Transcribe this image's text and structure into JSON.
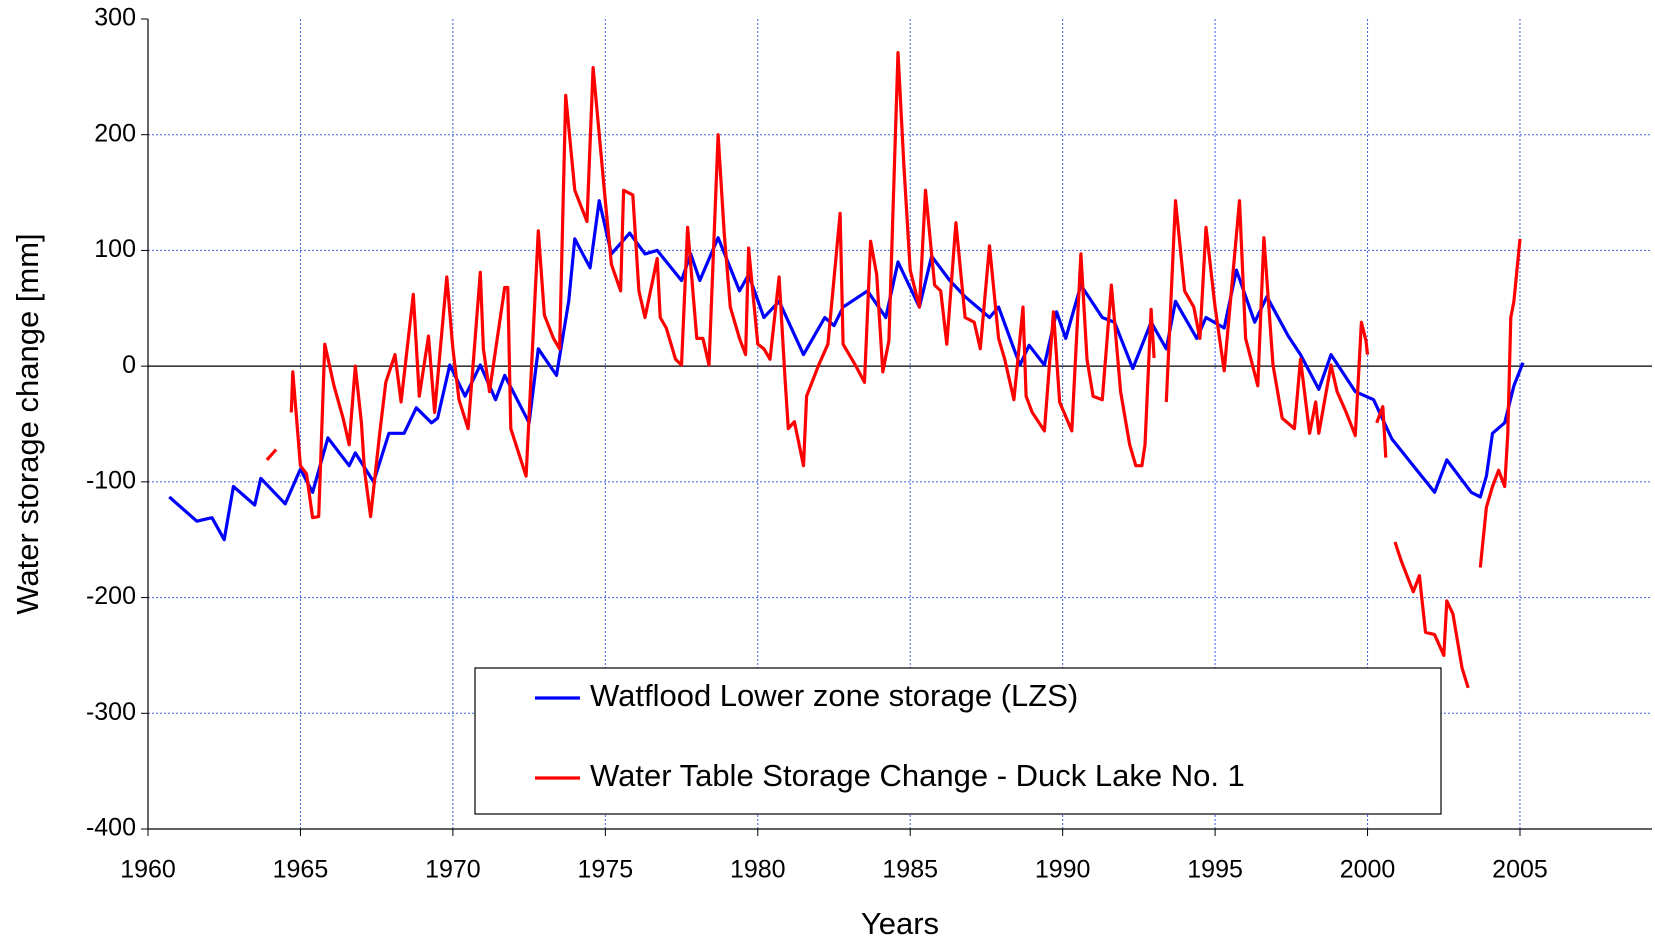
{
  "chart_data": {
    "type": "line",
    "x_label": "Years",
    "y_label": "Water storage change [mm]",
    "xlim": [
      1960,
      2009.33
    ],
    "xticks": [
      1960,
      1965,
      1970,
      1975,
      1980,
      1985,
      1990,
      1995,
      2000,
      2005
    ],
    "ylim": [
      -400,
      300
    ],
    "yticks": [
      -400,
      -300,
      -200,
      -100,
      0,
      100,
      200,
      300
    ],
    "grid": true,
    "legend": "bottom",
    "series": [
      {
        "name": "Watflood Lower zone storage (LZS)",
        "color": "#0000ff",
        "x": [
          1960.7,
          1961.6,
          1962.1,
          1962.5,
          1962.8,
          1963.5,
          1963.7,
          1964.5,
          1965.0,
          1965.4,
          1965.9,
          1966.6,
          1966.8,
          1967.4,
          1967.9,
          1968.4,
          1968.8,
          1969.3,
          1969.5,
          1969.9,
          1970.4,
          1970.9,
          1971.4,
          1971.7,
          1972.5,
          1972.8,
          1973.4,
          1973.8,
          1974.0,
          1974.5,
          1974.8,
          1975.2,
          1975.8,
          1976.3,
          1976.7,
          1977.5,
          1977.8,
          1978.1,
          1978.7,
          1979.4,
          1979.7,
          1980.2,
          1980.7,
          1981.5,
          1982.2,
          1982.5,
          1982.8,
          1983.6,
          1984.2,
          1984.6,
          1985.3,
          1985.7,
          1986.3,
          1986.8,
          1987.6,
          1987.9,
          1988.4,
          1988.6,
          1988.9,
          1989.4,
          1989.8,
          1990.1,
          1990.6,
          1991.3,
          1991.7,
          1992.3,
          1992.9,
          1993.4,
          1993.7,
          1994.4,
          1994.7,
          1995.3,
          1995.7,
          1996.3,
          1996.7,
          1997.4,
          1997.8,
          1998.4,
          1998.8,
          1999.6,
          2000.2,
          2000.8,
          2001.5,
          2002.2,
          2002.6,
          2003.4,
          2003.7,
          2003.9,
          2004.1,
          2004.5,
          2004.8,
          2005.1
        ],
        "values": [
          -113,
          -134,
          -131,
          -150,
          -104,
          -120,
          -97,
          -119,
          -89,
          -109,
          -62,
          -86,
          -75,
          -100,
          -58,
          -58,
          -36,
          -49,
          -45,
          1,
          -26,
          1,
          -29,
          -8,
          -49,
          15,
          -8,
          56,
          110,
          85,
          143,
          97,
          115,
          97,
          100,
          74,
          97,
          74,
          111,
          65,
          79,
          42,
          56,
          10,
          42,
          35,
          51,
          65,
          42,
          90,
          51,
          95,
          74,
          60,
          42,
          51,
          15,
          1,
          18,
          1,
          47,
          24,
          70,
          42,
          38,
          -2,
          38,
          15,
          56,
          24,
          42,
          33,
          83,
          38,
          60,
          26,
          10,
          -20,
          10,
          -22,
          -29,
          -63,
          -86,
          -109,
          -81,
          -109,
          -113,
          -95,
          -58,
          -49,
          -17,
          3
        ]
      },
      {
        "name": "Water Table Storage Change - Duck Lake No. 1",
        "color": "#ff0000",
        "x": [
          1963.9,
          1964.2,
          null,
          1964.7,
          1964.75,
          1965.0,
          1965.2,
          1965.4,
          1965.6,
          1965.8,
          1966.1,
          1966.4,
          1966.6,
          1966.8,
          1967.0,
          1967.1,
          1967.3,
          1967.6,
          1967.8,
          1968.1,
          1968.3,
          1968.7,
          1968.9,
          1969.2,
          1969.4,
          1969.8,
          1970.0,
          1970.2,
          1970.5,
          1970.9,
          1971.0,
          1971.2,
          1971.7,
          1971.8,
          1971.9,
          1972.4,
          1972.8,
          1973.0,
          1973.3,
          1973.5,
          1973.7,
          1974.0,
          1974.4,
          1974.6,
          1975.0,
          1975.2,
          1975.5,
          1975.6,
          1975.9,
          1976.1,
          1976.3,
          1976.7,
          1976.8,
          1977.0,
          1977.3,
          1977.5,
          1977.7,
          1978.0,
          1978.2,
          1978.4,
          1978.7,
          1978.9,
          1979.1,
          1979.4,
          1979.6,
          1979.7,
          1980.0,
          1980.2,
          1980.4,
          1980.7,
          1980.9,
          1981.0,
          1981.2,
          1981.5,
          1981.6,
          1982.0,
          1982.3,
          1982.7,
          1982.8,
          1983.2,
          1983.5,
          1983.7,
          1983.9,
          1984.1,
          1984.3,
          1984.6,
          1984.8,
          1985.0,
          1985.3,
          1985.5,
          1985.8,
          1986.0,
          1986.2,
          1986.5,
          1986.8,
          1987.1,
          1987.3,
          1987.6,
          1987.9,
          1988.1,
          1988.4,
          1988.7,
          1988.8,
          1989.0,
          1989.4,
          1989.7,
          1989.9,
          1990.3,
          1990.6,
          1990.8,
          1991.0,
          1991.3,
          1991.6,
          1991.9,
          1992.2,
          1992.4,
          1992.6,
          1992.7,
          1992.9,
          1993.0,
          null,
          1993.4,
          1993.7,
          1994.0,
          1994.3,
          1994.5,
          1994.7,
          1995.0,
          1995.3,
          1995.8,
          1996.0,
          1996.4,
          1996.6,
          1996.9,
          1997.2,
          1997.6,
          1997.8,
          1998.1,
          1998.3,
          1998.4,
          1998.8,
          1999.0,
          1999.3,
          1999.6,
          1999.8,
          1999.95,
          2000.0,
          null,
          2000.3,
          2000.5,
          2000.6,
          null,
          2000.9,
          2001.1,
          2001.5,
          2001.7,
          2001.9,
          2002.2,
          2002.5,
          2002.6,
          2002.8,
          2003.1,
          2003.3,
          null,
          2003.7,
          2003.9,
          2004.1,
          2004.3,
          2004.5,
          2004.6,
          2004.7,
          2004.8,
          2005.0
        ],
        "values": [
          -81,
          -72,
          null,
          -40,
          -5,
          -86,
          -93,
          -131,
          -130,
          19,
          -17,
          -45,
          -68,
          0,
          -49,
          -90,
          -130,
          -58,
          -14,
          10,
          -31,
          62,
          -26,
          26,
          -40,
          77,
          15,
          -29,
          -54,
          81,
          15,
          -22,
          68,
          68,
          -54,
          -95,
          117,
          44,
          24,
          15,
          234,
          152,
          125,
          258,
          143,
          88,
          65,
          152,
          148,
          65,
          42,
          93,
          42,
          33,
          6,
          1,
          120,
          24,
          24,
          1,
          200,
          115,
          51,
          24,
          10,
          102,
          19,
          15,
          6,
          77,
          -13,
          -54,
          -48,
          -86,
          -26,
          1,
          19,
          132,
          19,
          1,
          -14,
          108,
          79,
          -5,
          22,
          271,
          170,
          83,
          51,
          152,
          70,
          65,
          19,
          124,
          42,
          38,
          15,
          104,
          24,
          6,
          -29,
          51,
          -26,
          -40,
          -56,
          47,
          -31,
          -56,
          97,
          6,
          -26,
          -29,
          70,
          -22,
          -68,
          -86,
          -86,
          -68,
          49,
          7,
          null,
          -31,
          143,
          65,
          51,
          24,
          120,
          51,
          -4,
          143,
          24,
          -17,
          111,
          1,
          -45,
          -54,
          6,
          -58,
          -31,
          -58,
          1,
          -22,
          -40,
          -60,
          38,
          22,
          10,
          null,
          -49,
          -35,
          -79,
          null,
          -152,
          -168,
          -195,
          -181,
          -230,
          -232,
          -250,
          -203,
          -214,
          -261,
          -278,
          null,
          -174,
          -122,
          -104,
          -90,
          -104,
          -58,
          42,
          56,
          110
        ]
      }
    ]
  }
}
